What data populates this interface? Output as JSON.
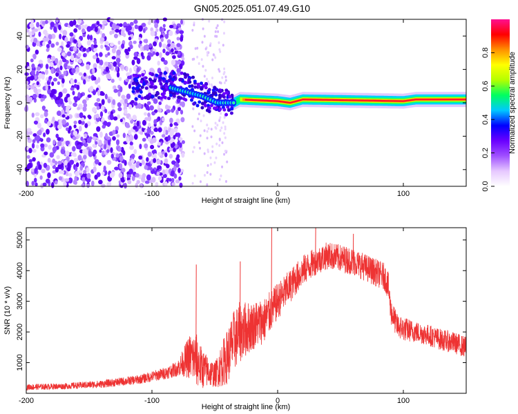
{
  "title": "GN05.2025.051.07.49.G10",
  "chart_data": [
    {
      "type": "heatmap",
      "xlabel": "Height of straight line (km)",
      "ylabel": "Frequency (Hz)",
      "xlim": [
        -200,
        150
      ],
      "ylim": [
        -50,
        50
      ],
      "xticks": [
        -200,
        -100,
        0,
        100
      ],
      "yticks": [
        -40,
        -20,
        0,
        20,
        40
      ],
      "colorbar": {
        "label": "Normalized spectral amplitude",
        "range": [
          0,
          1
        ],
        "ticks": [
          0.0,
          0.2,
          0.4,
          0.6,
          0.8
        ],
        "colors": [
          "#ffffff",
          "#e6c8ff",
          "#a050ff",
          "#6a00ff",
          "#0000ff",
          "#00c8ff",
          "#00ff60",
          "#b4ff00",
          "#ffff00",
          "#ff9000",
          "#ff0000",
          "#ff1090"
        ]
      },
      "ridge": {
        "description_points": [
          {
            "x": -110,
            "y": 10
          },
          {
            "x": -90,
            "y": 10
          },
          {
            "x": -75,
            "y": 7
          },
          {
            "x": -60,
            "y": 4
          },
          {
            "x": -48,
            "y": 0
          },
          {
            "x": -35,
            "y": 0
          },
          {
            "x": -30,
            "y": 2
          },
          {
            "x": 0,
            "y": 1
          },
          {
            "x": 10,
            "y": 0
          },
          {
            "x": 20,
            "y": 2
          },
          {
            "x": 100,
            "y": 1
          },
          {
            "x": 110,
            "y": 2
          },
          {
            "x": 150,
            "y": 2
          }
        ]
      }
    },
    {
      "type": "line",
      "xlabel": "Height of straight line (km)",
      "ylabel": "SNR (10 * v/v)",
      "xlim": [
        -200,
        150
      ],
      "ylim": [
        0,
        5400
      ],
      "xticks": [
        -200,
        -100,
        0,
        100
      ],
      "yticks": [
        1000,
        2000,
        3000,
        4000,
        5000
      ],
      "color": "#ee3333",
      "series": [
        {
          "x": [
            -200,
            -170,
            -140,
            -110,
            -90,
            -80,
            -75,
            -70,
            -65,
            -60,
            -55,
            -50,
            -45,
            -40,
            -35,
            -30,
            -25,
            -20,
            -10,
            0,
            10,
            20,
            30,
            40,
            50,
            60,
            70,
            80,
            85,
            88,
            90,
            95,
            100,
            110,
            120,
            130,
            140,
            150
          ],
          "values": [
            200,
            230,
            300,
            450,
            650,
            800,
            1000,
            1200,
            1100,
            800,
            700,
            600,
            900,
            1200,
            1700,
            2000,
            2100,
            2200,
            2400,
            3000,
            3500,
            4000,
            4300,
            4500,
            4400,
            4300,
            4100,
            3900,
            3800,
            3500,
            2700,
            2200,
            2100,
            2000,
            1900,
            1750,
            1650,
            1500
          ],
          "noise_amplitude": [
            200,
            200,
            250,
            300,
            400,
            500,
            900,
            1500,
            1800,
            1300,
            1000,
            800,
            1400,
            1800,
            2000,
            2000,
            1800,
            1600,
            1500,
            1200,
            1100,
            1000,
            900,
            900,
            900,
            900,
            900,
            900,
            900,
            900,
            900,
            800,
            800,
            700,
            700,
            700,
            700,
            700
          ]
        }
      ],
      "spikes": [
        {
          "x": -65,
          "y": 4200
        },
        {
          "x": -30,
          "y": 4300
        },
        {
          "x": -5,
          "y": 5400
        },
        {
          "x": 30,
          "y": 5400
        },
        {
          "x": 60,
          "y": 5200
        }
      ]
    }
  ]
}
